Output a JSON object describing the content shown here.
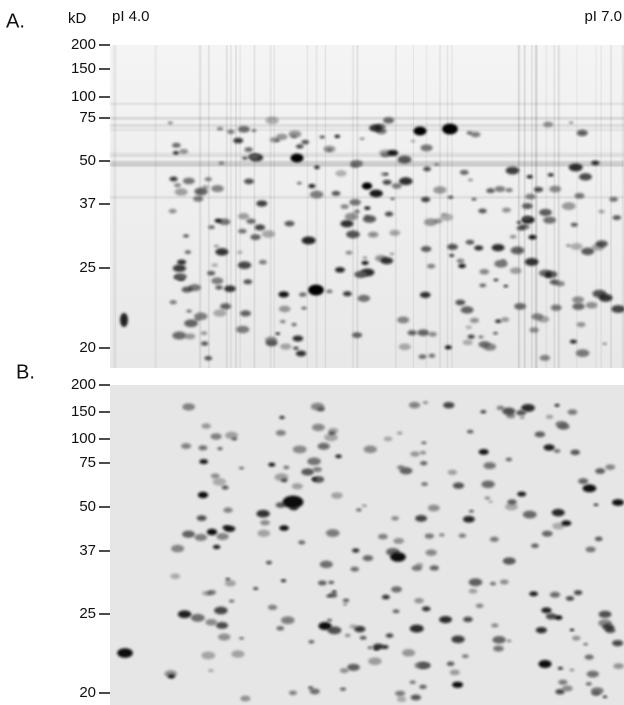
{
  "labels": {
    "panel_a": "A.",
    "panel_b": "B.",
    "unit": "kD",
    "pi_low": "pI 4.0",
    "pi_high": "pI 7.0"
  },
  "panels": [
    {
      "ticks": [
        "200",
        "150",
        "100",
        "75",
        "50",
        "37",
        "25",
        "20"
      ]
    },
    {
      "ticks": [
        "200",
        "150",
        "100",
        "75",
        "50",
        "37",
        "25",
        "20"
      ]
    }
  ]
}
